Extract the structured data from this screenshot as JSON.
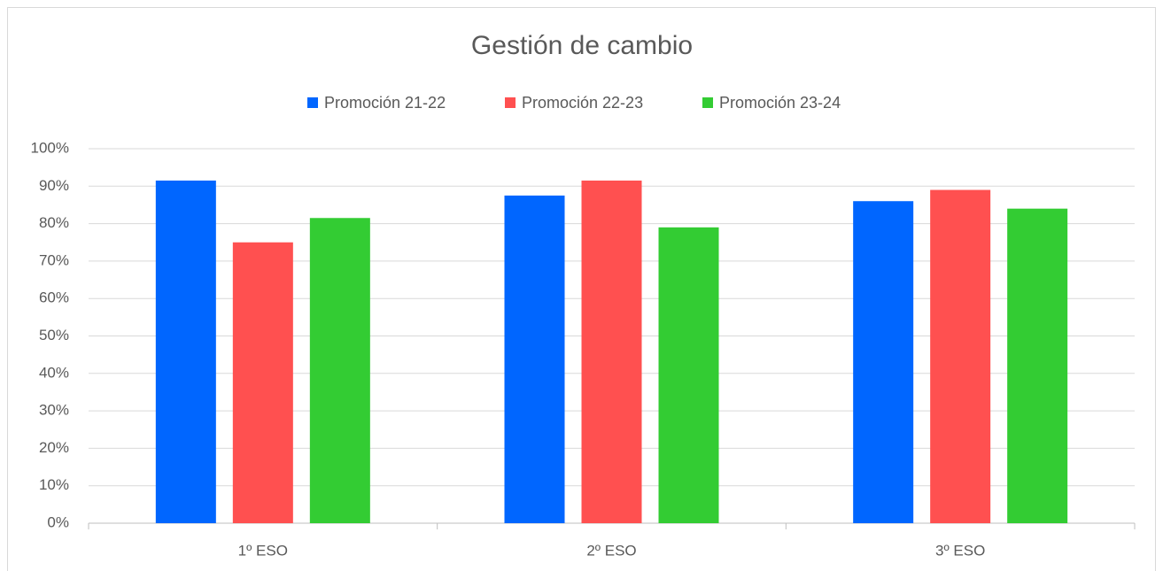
{
  "chart_data": {
    "type": "bar",
    "title": "Gestión de cambio",
    "categories": [
      "1º ESO",
      "2º ESO",
      "3º ESO"
    ],
    "series": [
      {
        "name": "Promoción 21-22",
        "color": "#0066ff",
        "values": [
          91.5,
          87.5,
          86
        ]
      },
      {
        "name": "Promoción 22-23",
        "color": "#ff5050",
        "values": [
          75,
          91.5,
          89
        ]
      },
      {
        "name": "Promoción 23-24",
        "color": "#33cc33",
        "values": [
          81.5,
          79,
          84
        ]
      }
    ],
    "ylim": [
      0,
      100
    ],
    "yticks": [
      {
        "value": 0,
        "label": "0%"
      },
      {
        "value": 10,
        "label": "10%"
      },
      {
        "value": 20,
        "label": "20%"
      },
      {
        "value": 30,
        "label": "30%"
      },
      {
        "value": 40,
        "label": "40%"
      },
      {
        "value": 50,
        "label": "50%"
      },
      {
        "value": 60,
        "label": "60%"
      },
      {
        "value": 70,
        "label": "70%"
      },
      {
        "value": 80,
        "label": "80%"
      },
      {
        "value": 90,
        "label": "90%"
      },
      {
        "value": 100,
        "label": "100%"
      }
    ],
    "grid": true,
    "legend": "top"
  }
}
